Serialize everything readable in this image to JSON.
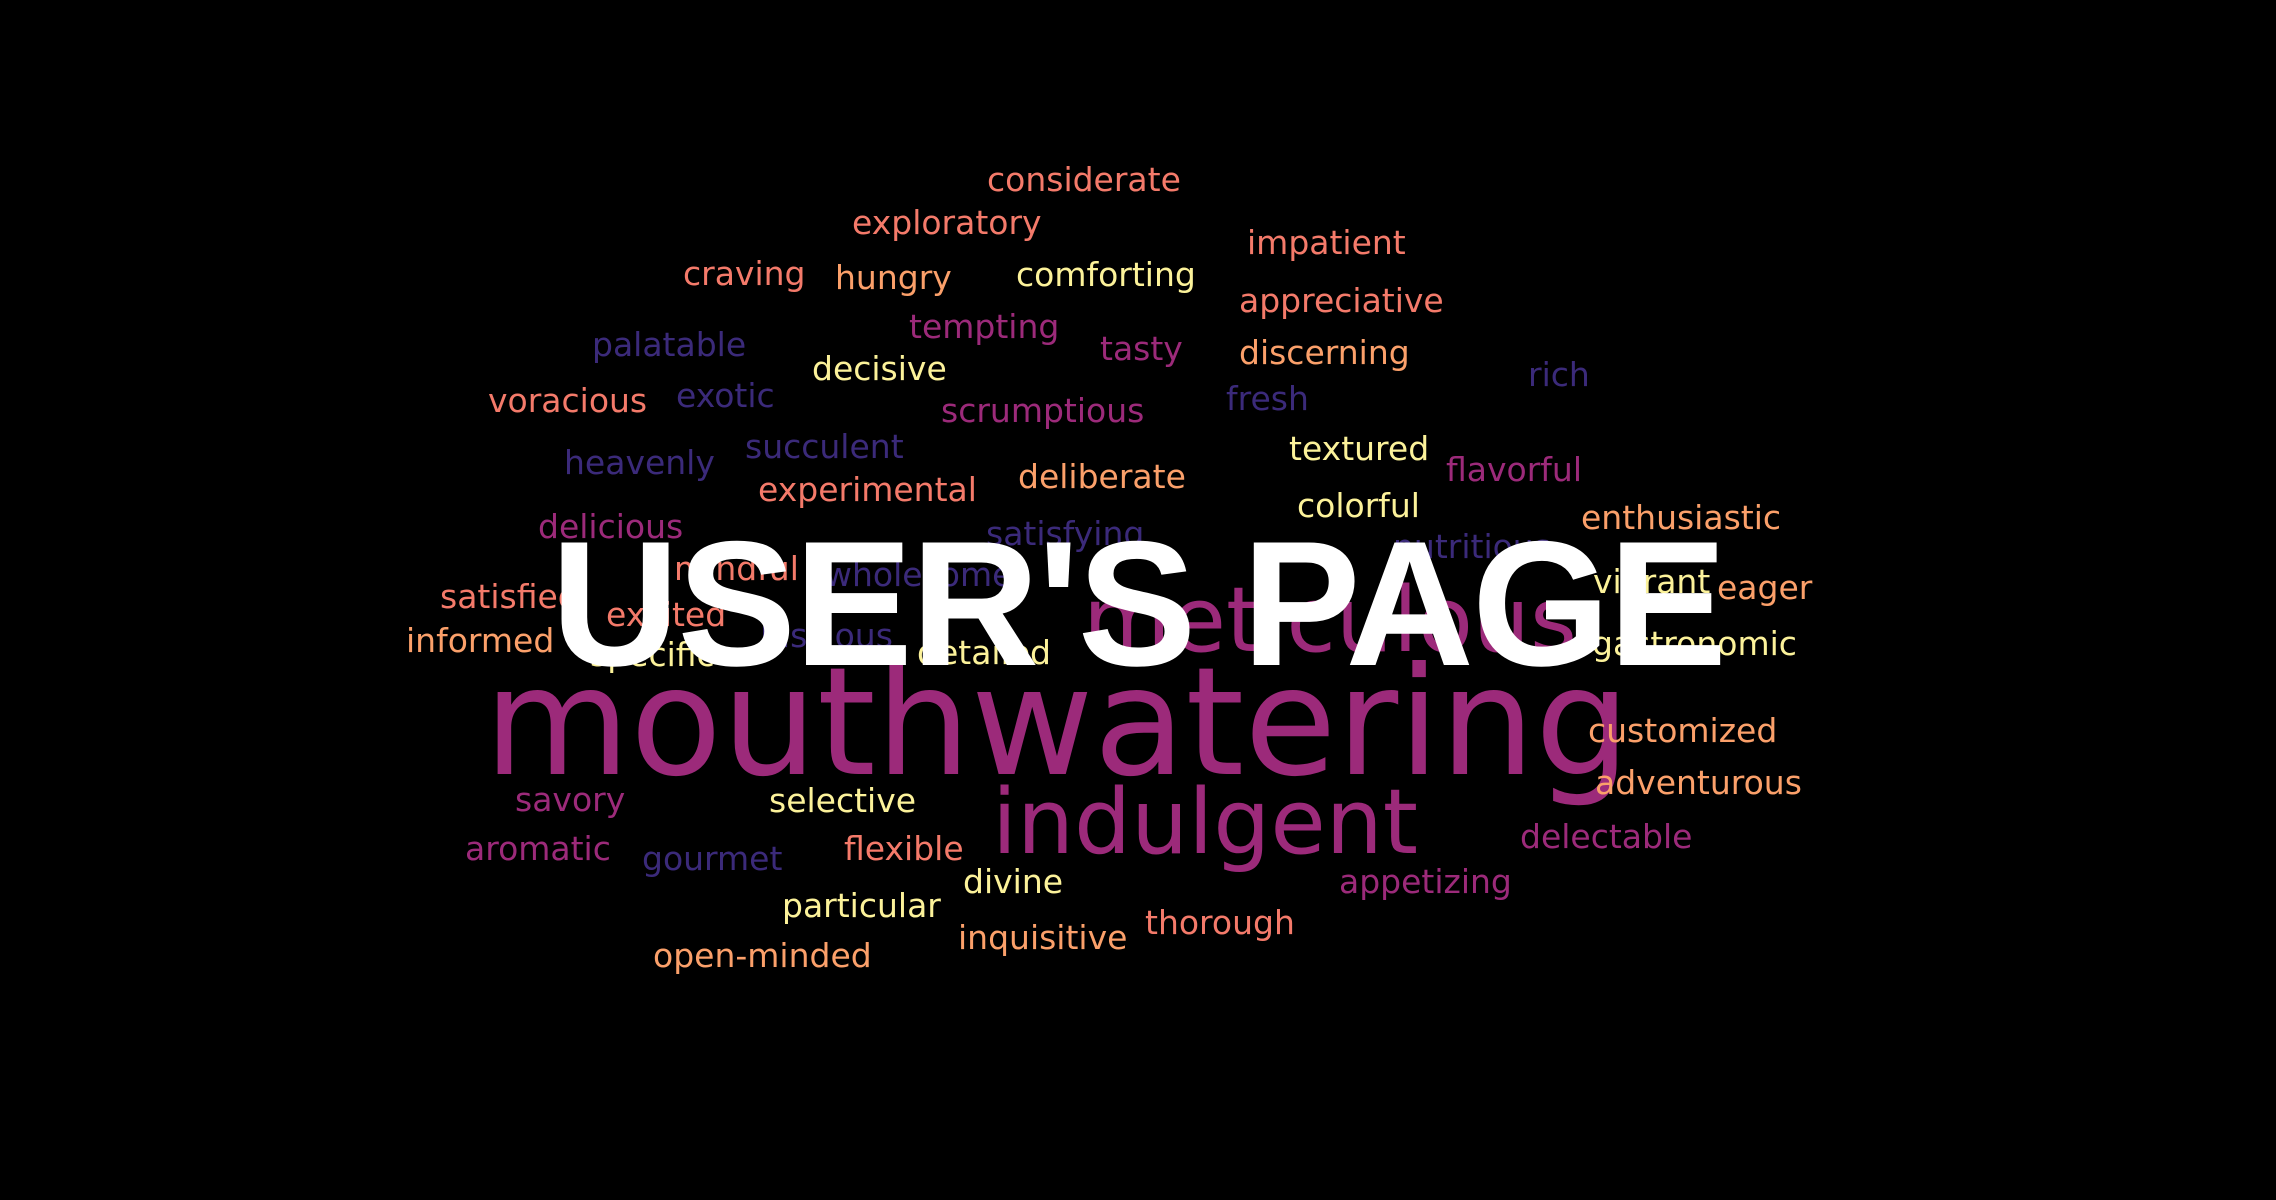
{
  "title": "USER'S PAGE",
  "colors": {
    "background": "#000000",
    "title": "#ffffff",
    "magenta": "#9c2a7a",
    "indigo": "#3b2a7a",
    "coral": "#f47a6a",
    "orange": "#fba06a",
    "yellow": "#fcf29a"
  },
  "words": [
    {
      "text": "considerate",
      "color": "coral"
    },
    {
      "text": "exploratory",
      "color": "coral"
    },
    {
      "text": "impatient",
      "color": "coral"
    },
    {
      "text": "craving",
      "color": "coral"
    },
    {
      "text": "hungry",
      "color": "orange"
    },
    {
      "text": "comforting",
      "color": "yellow"
    },
    {
      "text": "appreciative",
      "color": "coral"
    },
    {
      "text": "tempting",
      "color": "magenta"
    },
    {
      "text": "palatable",
      "color": "indigo"
    },
    {
      "text": "decisive",
      "color": "yellow"
    },
    {
      "text": "tasty",
      "color": "magenta"
    },
    {
      "text": "discerning",
      "color": "orange"
    },
    {
      "text": "rich",
      "color": "indigo"
    },
    {
      "text": "voracious",
      "color": "coral"
    },
    {
      "text": "exotic",
      "color": "indigo"
    },
    {
      "text": "scrumptious",
      "color": "magenta"
    },
    {
      "text": "fresh",
      "color": "indigo"
    },
    {
      "text": "succulent",
      "color": "indigo"
    },
    {
      "text": "textured",
      "color": "yellow"
    },
    {
      "text": "heavenly",
      "color": "indigo"
    },
    {
      "text": "flavorful",
      "color": "magenta"
    },
    {
      "text": "experimental",
      "color": "coral"
    },
    {
      "text": "deliberate",
      "color": "orange"
    },
    {
      "text": "colorful",
      "color": "yellow"
    },
    {
      "text": "delicious",
      "color": "magenta"
    },
    {
      "text": "satisfying",
      "color": "indigo"
    },
    {
      "text": "enthusiastic",
      "color": "orange"
    },
    {
      "text": "nutritious",
      "color": "indigo"
    },
    {
      "text": "mindful",
      "color": "coral"
    },
    {
      "text": "wholesome",
      "color": "indigo"
    },
    {
      "text": "vibrant",
      "color": "yellow"
    },
    {
      "text": "eager",
      "color": "orange"
    },
    {
      "text": "satisfied",
      "color": "coral"
    },
    {
      "text": "excited",
      "color": "coral"
    },
    {
      "text": "meticulous",
      "color": "magenta"
    },
    {
      "text": "informed",
      "color": "orange"
    },
    {
      "text": "specific",
      "color": "yellow"
    },
    {
      "text": "luscious",
      "color": "indigo"
    },
    {
      "text": "detailed",
      "color": "yellow"
    },
    {
      "text": "gastronomic",
      "color": "yellow"
    },
    {
      "text": "mouthwatering",
      "color": "magenta"
    },
    {
      "text": "customized",
      "color": "orange"
    },
    {
      "text": "adventurous",
      "color": "orange"
    },
    {
      "text": "savory",
      "color": "magenta"
    },
    {
      "text": "selective",
      "color": "yellow"
    },
    {
      "text": "indulgent",
      "color": "magenta"
    },
    {
      "text": "aromatic",
      "color": "magenta"
    },
    {
      "text": "gourmet",
      "color": "indigo"
    },
    {
      "text": "flexible",
      "color": "coral"
    },
    {
      "text": "delectable",
      "color": "magenta"
    },
    {
      "text": "divine",
      "color": "yellow"
    },
    {
      "text": "appetizing",
      "color": "magenta"
    },
    {
      "text": "particular",
      "color": "yellow"
    },
    {
      "text": "thorough",
      "color": "coral"
    },
    {
      "text": "inquisitive",
      "color": "orange"
    },
    {
      "text": "open-minded",
      "color": "orange"
    }
  ]
}
